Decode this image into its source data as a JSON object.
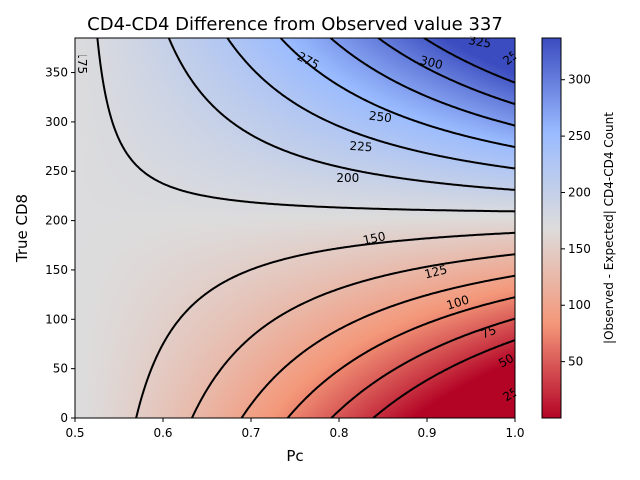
{
  "chart_data": {
    "type": "heatmap",
    "title": "CD4-CD4 Difference from Observed value 337",
    "xlabel": "Pc",
    "ylabel": "True CD8",
    "colorbar_label": "|Observed - Expected| CD4-CD4 Count",
    "xlim": [
      0.5,
      1.0
    ],
    "ylim": [
      0,
      385
    ],
    "x_ticks": [
      "0.5",
      "0.6",
      "0.7",
      "0.8",
      "0.9",
      "1.0"
    ],
    "y_ticks": [
      "0",
      "50",
      "100",
      "150",
      "200",
      "250",
      "300",
      "350"
    ],
    "colorbar_ticks": [
      "50",
      "100",
      "150",
      "200",
      "250",
      "300"
    ],
    "colorbar_range": [
      0,
      337
    ],
    "colormap": "coolwarm_r",
    "observed_value": 337,
    "contour_levels": [
      25,
      50,
      75,
      100,
      125,
      150,
      175,
      200,
      225,
      250,
      275,
      300,
      325
    ],
    "contour_labels": [
      "175",
      "150",
      "125",
      "100",
      "75",
      "50",
      "25",
      "25",
      "200",
      "225",
      "250",
      "275",
      "300",
      "325"
    ],
    "grid": false
  }
}
